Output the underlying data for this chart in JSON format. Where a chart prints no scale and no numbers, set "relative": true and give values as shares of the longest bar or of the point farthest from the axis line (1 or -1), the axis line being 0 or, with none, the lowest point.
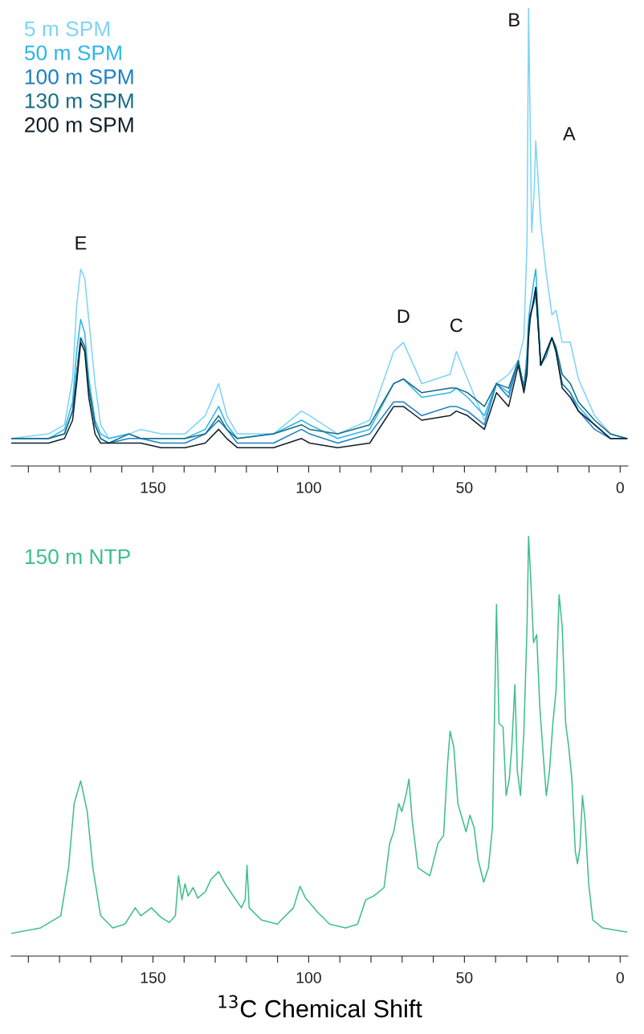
{
  "chart_data": [
    {
      "type": "line",
      "relative": true,
      "legend": "top left",
      "xlim": [
        195.5,
        -2.5
      ],
      "xticks": [
        {
          "value": 190,
          "label": null
        },
        {
          "value": 180,
          "label": null
        },
        {
          "value": 170,
          "label": null
        },
        {
          "value": 160,
          "label": null
        },
        150,
        {
          "value": 140,
          "label": null
        },
        {
          "value": 130,
          "label": null
        },
        {
          "value": 120,
          "label": null
        },
        {
          "value": 110,
          "label": null
        },
        100,
        {
          "value": 90,
          "label": null
        },
        {
          "value": 80,
          "label": null
        },
        {
          "value": 70,
          "label": null
        },
        {
          "value": 60,
          "label": null
        },
        50,
        {
          "value": 40,
          "label": null
        },
        {
          "value": 30,
          "label": null
        },
        {
          "value": 20,
          "label": null
        },
        {
          "value": 10,
          "label": null
        },
        0
      ],
      "x": [
        195.4,
        183.5,
        178.4,
        175.8,
        174.5,
        173.2,
        171.9,
        170.6,
        168.6,
        166.8,
        164.2,
        157.7,
        153.9,
        147.4,
        139.7,
        133.2,
        128.9,
        126.3,
        122.9,
        111.3,
        102.3,
        99.7,
        90.7,
        80.4,
        72.7,
        69.6,
        63.7,
        54.6,
        52.6,
        49.0,
        43.6,
        39.7,
        35.8,
        32.7,
        30.9,
        29.9,
        29.4,
        28.9,
        28.4,
        27.6,
        27.1,
        25.5,
        23.7,
        21.9,
        20.6,
        18.6,
        16.0,
        13.4,
        8.2,
        3.1,
        -2.1
      ],
      "series": [
        {
          "name": "5 m SPM",
          "color": "#7dd4f5",
          "values": [
            0.06,
            0.07,
            0.09,
            0.19,
            0.35,
            0.43,
            0.41,
            0.32,
            0.18,
            0.09,
            0.06,
            0.07,
            0.08,
            0.07,
            0.07,
            0.11,
            0.18,
            0.11,
            0.07,
            0.07,
            0.12,
            0.11,
            0.07,
            0.1,
            0.25,
            0.27,
            0.18,
            0.2,
            0.25,
            0.19,
            0.1,
            0.18,
            0.2,
            0.23,
            0.28,
            0.49,
            1.0,
            0.75,
            0.51,
            0.6,
            0.71,
            0.53,
            0.42,
            0.33,
            0.34,
            0.27,
            0.27,
            0.19,
            0.11,
            0.07,
            0.06
          ]
        },
        {
          "name": "50 m SPM",
          "color": "#2cb5e9",
          "values": [
            0.06,
            0.06,
            0.08,
            0.14,
            0.25,
            0.32,
            0.29,
            0.19,
            0.1,
            0.07,
            0.06,
            0.07,
            0.06,
            0.06,
            0.06,
            0.08,
            0.13,
            0.09,
            0.06,
            0.07,
            0.1,
            0.09,
            0.06,
            0.08,
            0.18,
            0.19,
            0.15,
            0.16,
            0.17,
            0.15,
            0.11,
            0.18,
            0.16,
            0.23,
            0.17,
            0.25,
            0.32,
            0.35,
            0.37,
            0.41,
            0.43,
            0.22,
            0.25,
            0.28,
            0.25,
            0.18,
            0.16,
            0.13,
            0.09,
            0.06,
            0.06
          ]
        },
        {
          "name": "100 m SPM",
          "color": "#1a80c4",
          "values": [
            0.06,
            0.06,
            0.07,
            0.12,
            0.2,
            0.28,
            0.26,
            0.17,
            0.09,
            0.06,
            0.05,
            0.06,
            0.06,
            0.05,
            0.05,
            0.07,
            0.1,
            0.08,
            0.05,
            0.05,
            0.08,
            0.07,
            0.05,
            0.07,
            0.14,
            0.14,
            0.11,
            0.13,
            0.13,
            0.12,
            0.09,
            0.18,
            0.15,
            0.23,
            0.17,
            0.22,
            0.3,
            0.33,
            0.34,
            0.36,
            0.38,
            0.22,
            0.24,
            0.28,
            0.25,
            0.18,
            0.16,
            0.12,
            0.08,
            0.06,
            0.06
          ]
        },
        {
          "name": "130 m SPM",
          "color": "#166c84",
          "values": [
            0.06,
            0.06,
            0.07,
            0.12,
            0.2,
            0.28,
            0.26,
            0.17,
            0.09,
            0.06,
            0.05,
            0.07,
            0.06,
            0.06,
            0.06,
            0.07,
            0.11,
            0.08,
            0.06,
            0.07,
            0.09,
            0.08,
            0.07,
            0.09,
            0.18,
            0.19,
            0.16,
            0.17,
            0.17,
            0.16,
            0.13,
            0.18,
            0.17,
            0.23,
            0.17,
            0.22,
            0.3,
            0.33,
            0.34,
            0.36,
            0.39,
            0.22,
            0.25,
            0.28,
            0.26,
            0.2,
            0.18,
            0.14,
            0.1,
            0.07,
            0.06
          ]
        },
        {
          "name": "200 m SPM",
          "color": "#0f1f2b",
          "values": [
            0.05,
            0.05,
            0.06,
            0.1,
            0.18,
            0.27,
            0.25,
            0.15,
            0.07,
            0.05,
            0.05,
            0.05,
            0.05,
            0.04,
            0.04,
            0.05,
            0.08,
            0.06,
            0.04,
            0.04,
            0.06,
            0.05,
            0.04,
            0.05,
            0.13,
            0.13,
            0.1,
            0.11,
            0.12,
            0.11,
            0.08,
            0.16,
            0.13,
            0.22,
            0.16,
            0.2,
            0.28,
            0.32,
            0.34,
            0.37,
            0.39,
            0.22,
            0.25,
            0.28,
            0.25,
            0.17,
            0.15,
            0.12,
            0.09,
            0.06,
            0.06
          ]
        }
      ],
      "annotations": [
        {
          "text": "E",
          "x": 173.2,
          "y": 0.43
        },
        {
          "text": "D",
          "x": 69.6,
          "y": 0.27
        },
        {
          "text": "C",
          "x": 52.6,
          "y": 0.25
        },
        {
          "text": "B",
          "x": 29.4,
          "y": 1.0
        },
        {
          "text": "A",
          "x": 27.1,
          "y": 0.71
        }
      ]
    },
    {
      "type": "line",
      "relative": true,
      "legend": "top left",
      "xlim": [
        195.5,
        -2.5
      ],
      "xlabel": "$^{13}$C Chemical Shift",
      "xticks": [
        {
          "value": 190,
          "label": null
        },
        {
          "value": 180,
          "label": null
        },
        {
          "value": 170,
          "label": null
        },
        {
          "value": 160,
          "label": null
        },
        150,
        {
          "value": 140,
          "label": null
        },
        {
          "value": 130,
          "label": null
        },
        {
          "value": 120,
          "label": null
        },
        {
          "value": 110,
          "label": null
        },
        100,
        {
          "value": 90,
          "label": null
        },
        {
          "value": 80,
          "label": null
        },
        {
          "value": 70,
          "label": null
        },
        {
          "value": 60,
          "label": null
        },
        50,
        {
          "value": 40,
          "label": null
        },
        {
          "value": 30,
          "label": null
        },
        {
          "value": 20,
          "label": null
        },
        {
          "value": 10,
          "label": null
        },
        0
      ],
      "x": [
        195.4,
        186.1,
        179.6,
        177.1,
        175.3,
        173.2,
        171.1,
        169.3,
        166.8,
        162.9,
        159.0,
        155.7,
        153.9,
        150.5,
        147.4,
        144.8,
        142.8,
        141.8,
        140.7,
        139.7,
        138.7,
        137.1,
        135.6,
        133.2,
        131.4,
        128.9,
        126.8,
        124.2,
        121.6,
        120.4,
        119.8,
        119.1,
        115.2,
        110.1,
        104.9,
        102.8,
        101.0,
        97.2,
        93.3,
        88.1,
        84.3,
        81.7,
        79.1,
        75.8,
        74.0,
        72.7,
        71.1,
        70.1,
        68.8,
        67.8,
        66.8,
        64.9,
        61.1,
        58.5,
        56.7,
        55.4,
        54.6,
        53.4,
        52.1,
        49.5,
        48.2,
        46.9,
        45.6,
        43.8,
        42.3,
        41.0,
        39.7,
        38.9,
        37.6,
        36.6,
        35.6,
        34.8,
        33.8,
        33.0,
        32.0,
        30.9,
        29.9,
        29.4,
        28.6,
        27.8,
        26.8,
        25.8,
        24.7,
        23.7,
        22.7,
        21.6,
        20.6,
        19.6,
        18.6,
        17.5,
        16.5,
        15.5,
        14.4,
        13.7,
        12.9,
        12.1,
        11.3,
        10.1,
        8.8,
        5.7,
        -2.1
      ],
      "series": [
        {
          "name": "150 m NTP",
          "color": "#3dbf8a",
          "values": [
            0.054,
            0.067,
            0.096,
            0.21,
            0.363,
            0.417,
            0.344,
            0.21,
            0.096,
            0.067,
            0.076,
            0.115,
            0.096,
            0.115,
            0.092,
            0.08,
            0.096,
            0.191,
            0.134,
            0.172,
            0.143,
            0.163,
            0.138,
            0.153,
            0.182,
            0.201,
            0.172,
            0.143,
            0.115,
            0.134,
            0.216,
            0.115,
            0.086,
            0.076,
            0.115,
            0.166,
            0.138,
            0.105,
            0.076,
            0.067,
            0.076,
            0.134,
            0.143,
            0.163,
            0.268,
            0.296,
            0.363,
            0.344,
            0.382,
            0.421,
            0.325,
            0.21,
            0.191,
            0.268,
            0.287,
            0.459,
            0.535,
            0.497,
            0.363,
            0.296,
            0.335,
            0.306,
            0.229,
            0.176,
            0.21,
            0.306,
            0.837,
            0.554,
            0.545,
            0.382,
            0.421,
            0.497,
            0.646,
            0.44,
            0.382,
            0.535,
            0.784,
            1.0,
            0.88,
            0.746,
            0.765,
            0.593,
            0.478,
            0.382,
            0.44,
            0.554,
            0.631,
            0.86,
            0.784,
            0.554,
            0.497,
            0.421,
            0.249,
            0.22,
            0.258,
            0.382,
            0.325,
            0.172,
            0.086,
            0.067,
            0.057
          ]
        }
      ]
    }
  ]
}
